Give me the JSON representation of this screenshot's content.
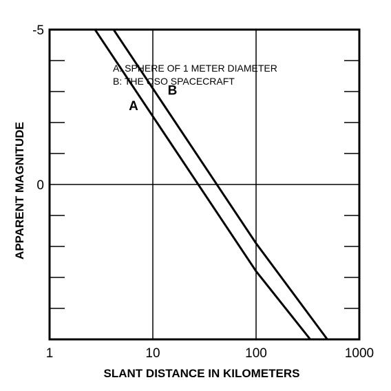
{
  "chart_data": {
    "type": "line",
    "xscale": "log",
    "xlim": [
      1,
      1000
    ],
    "ylim": [
      5,
      -5
    ],
    "y_inverted": true,
    "xlabel": "SLANT DISTANCE IN KILOMETERS",
    "ylabel": "APPARENT MAGNITUDE",
    "x_ticks": [
      {
        "value": 1,
        "label": "1"
      },
      {
        "value": 10,
        "label": "10"
      },
      {
        "value": 100,
        "label": "100"
      },
      {
        "value": 1000,
        "label": "1000"
      }
    ],
    "y_ticks": [
      {
        "value": -5,
        "label": "-5"
      },
      {
        "value": 0,
        "label": "0"
      }
    ],
    "grid": true,
    "legend": [
      "A: SPHERE OF 1 METER DIAMETER",
      "B: THE OSO SPACECRAFT"
    ],
    "series": [
      {
        "name": "A",
        "x": [
          1,
          10,
          100,
          335
        ],
        "y": [
          -7.2,
          -2.2,
          2.8,
          5.0
        ]
      },
      {
        "name": "B",
        "x": [
          1,
          10,
          100,
          490
        ],
        "y": [
          -8.1,
          -3.1,
          1.9,
          5.0
        ]
      }
    ],
    "annotations": [
      {
        "text": "A",
        "x": 6.5,
        "y": -2.4
      },
      {
        "text": "B",
        "x": 15.5,
        "y": -2.9
      }
    ]
  }
}
